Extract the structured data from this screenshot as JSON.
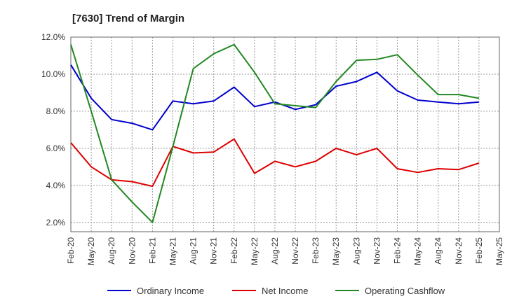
{
  "chart_data": {
    "type": "line",
    "title": "[7630]  Trend of Margin",
    "xlabel": "",
    "ylabel": "",
    "ylim": [
      1.5,
      12.0
    ],
    "y_ticks": [
      2.0,
      4.0,
      6.0,
      8.0,
      10.0,
      12.0
    ],
    "y_tick_labels": [
      "2.0%",
      "4.0%",
      "6.0%",
      "8.0%",
      "10.0%",
      "12.0%"
    ],
    "x_tick_labels": [
      "Feb-20",
      "May-20",
      "Aug-20",
      "Nov-20",
      "Feb-21",
      "May-21",
      "Aug-21",
      "Nov-21",
      "Feb-22",
      "May-22",
      "Aug-22",
      "Nov-22",
      "Feb-23",
      "May-23",
      "Aug-23",
      "Nov-23",
      "Feb-24",
      "May-24",
      "Aug-24",
      "Nov-24",
      "Feb-25",
      "May-25"
    ],
    "grid": true,
    "legend_position": "bottom",
    "series": [
      {
        "name": "Ordinary Income",
        "color": "#0000cc",
        "values": [
          10.5,
          8.7,
          7.55,
          7.35,
          7.0,
          8.55,
          8.4,
          8.55,
          9.3,
          8.25,
          8.5,
          8.1,
          8.35,
          9.35,
          9.6,
          10.1,
          9.1,
          8.6,
          8.5,
          8.4,
          8.5
        ]
      },
      {
        "name": "Net Income",
        "color": "#dd0000",
        "values": [
          6.3,
          5.0,
          4.3,
          4.2,
          3.95,
          6.1,
          5.75,
          5.8,
          6.5,
          4.65,
          5.3,
          5.0,
          5.3,
          6.0,
          5.65,
          6.0,
          4.9,
          4.7,
          4.9,
          4.85,
          5.2
        ]
      },
      {
        "name": "Operating Cashflow",
        "color": "#228822",
        "values": [
          11.6,
          8.0,
          4.3,
          3.1,
          2.0,
          6.1,
          10.3,
          11.1,
          11.6,
          10.1,
          8.4,
          8.3,
          8.2,
          9.6,
          10.75,
          10.8,
          11.05,
          9.95,
          8.9,
          8.9,
          8.7
        ]
      }
    ]
  }
}
